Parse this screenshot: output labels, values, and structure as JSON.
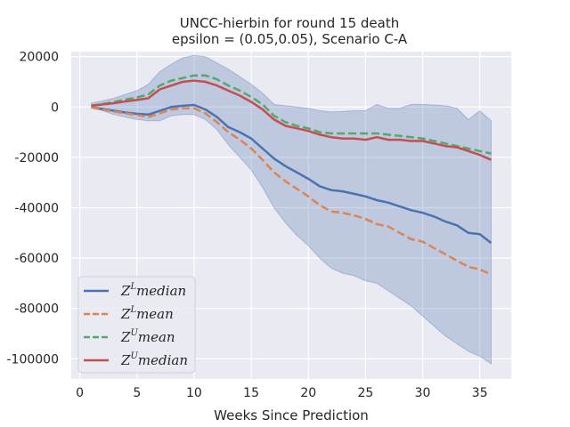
{
  "chart_data": {
    "type": "line",
    "title": "UNCC-hierbin for round 15 death",
    "subtitle": "epsilon = (0.05,0.05), Scenario C-A",
    "xlabel": "Weeks Since Prediction",
    "ylabel": "",
    "xlim": [
      -0.75,
      37.75
    ],
    "ylim": [
      -108000,
      22000
    ],
    "xticks": [
      0,
      5,
      10,
      15,
      20,
      25,
      30,
      35
    ],
    "yticks": [
      20000,
      0,
      -20000,
      -40000,
      -60000,
      -80000,
      -100000
    ],
    "grid": true,
    "background": "#eaeaf2",
    "legend_position": "lower-left",
    "x": [
      1,
      2,
      3,
      4,
      5,
      6,
      7,
      8,
      9,
      10,
      11,
      12,
      13,
      14,
      15,
      16,
      17,
      18,
      19,
      20,
      21,
      22,
      23,
      24,
      25,
      26,
      27,
      28,
      29,
      30,
      31,
      32,
      33,
      34,
      35,
      36
    ],
    "band": {
      "color": "#4c72b0",
      "upper": [
        1500,
        2500,
        3500,
        5000,
        6500,
        9000,
        14000,
        17000,
        19500,
        20500,
        20000,
        17500,
        15000,
        12000,
        9000,
        5500,
        1000,
        500,
        0,
        -500,
        -1500,
        -2000,
        -1800,
        -1500,
        -1500,
        1000,
        -500,
        -500,
        1000,
        1000,
        800,
        500,
        -500,
        -5000,
        -1500,
        -5500
      ],
      "lower": [
        -500,
        -1500,
        -3000,
        -4000,
        -5000,
        -5500,
        -5500,
        -3500,
        -3000,
        -3000,
        -5000,
        -9000,
        -15000,
        -20000,
        -25000,
        -32000,
        -40000,
        -46000,
        -51000,
        -55000,
        -60000,
        -64000,
        -66000,
        -67000,
        -69000,
        -70000,
        -73000,
        -76000,
        -79000,
        -83000,
        -87000,
        -91000,
        -94000,
        -97000,
        -99000,
        -102000
      ]
    },
    "series": [
      {
        "name": "Z^L median",
        "name_base": "Z",
        "name_sup": "L",
        "name_rest": "median",
        "color": "#4c72b0",
        "dash": "solid",
        "values": [
          0,
          -800,
          -1500,
          -2200,
          -2700,
          -3000,
          -1500,
          0,
          500,
          800,
          -1000,
          -4000,
          -8000,
          -10000,
          -12500,
          -16500,
          -20500,
          -23500,
          -26000,
          -28500,
          -31500,
          -33000,
          -33500,
          -34500,
          -35500,
          -37000,
          -38000,
          -39500,
          -41000,
          -42000,
          -43500,
          -45500,
          -47000,
          -50000,
          -50500,
          -54000
        ]
      },
      {
        "name": "Z^L mean",
        "name_base": "Z",
        "name_sup": "L",
        "name_rest": "mean",
        "color": "#dd8452",
        "dash": "dashed",
        "values": [
          0,
          -1000,
          -1800,
          -2500,
          -3200,
          -4000,
          -2500,
          -1000,
          -500,
          -500,
          -2500,
          -6000,
          -10000,
          -13000,
          -16500,
          -21000,
          -26000,
          -29500,
          -32500,
          -35500,
          -39000,
          -41500,
          -42000,
          -43000,
          -44500,
          -46500,
          -47500,
          -50000,
          -52500,
          -53500,
          -56000,
          -58500,
          -61000,
          -63500,
          -64500,
          -66500
        ]
      },
      {
        "name": "Z^U mean",
        "name_base": "Z",
        "name_sup": "U",
        "name_rest": "mean",
        "color": "#55a868",
        "dash": "dashed",
        "values": [
          500,
          1200,
          2000,
          3000,
          3800,
          5000,
          8500,
          10500,
          11500,
          12500,
          12500,
          11000,
          8500,
          6500,
          4000,
          1000,
          -3500,
          -6000,
          -7500,
          -8500,
          -10000,
          -10500,
          -10500,
          -10500,
          -10500,
          -10500,
          -11000,
          -11500,
          -12000,
          -12500,
          -13500,
          -14500,
          -15500,
          -16500,
          -17500,
          -18500
        ]
      },
      {
        "name": "Z^U median",
        "name_base": "Z",
        "name_sup": "U",
        "name_rest": "median",
        "color": "#c44e52",
        "dash": "solid",
        "values": [
          500,
          1000,
          1500,
          2200,
          2800,
          3500,
          7000,
          8500,
          10000,
          10500,
          10000,
          8500,
          6500,
          4500,
          2000,
          -1000,
          -5000,
          -7500,
          -8500,
          -9500,
          -11000,
          -12000,
          -12500,
          -12500,
          -13000,
          -12000,
          -13000,
          -13000,
          -13500,
          -13500,
          -14500,
          -15500,
          -16000,
          -17500,
          -19000,
          -21000
        ]
      }
    ]
  }
}
